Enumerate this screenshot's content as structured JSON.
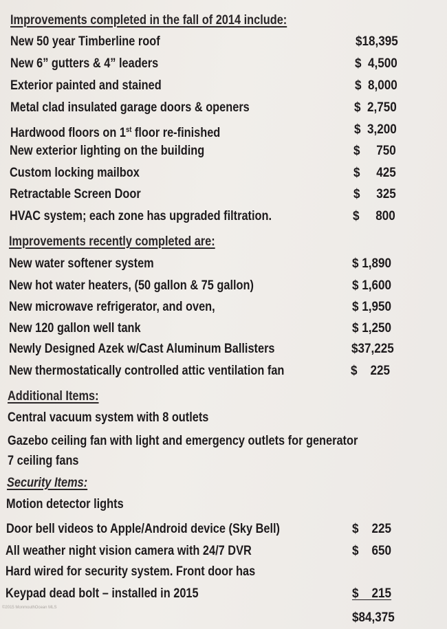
{
  "section1": {
    "heading": "Improvements completed in the fall of 2014 include:",
    "items": [
      {
        "label": "New 50 year Timberline roof",
        "price": "$18,395"
      },
      {
        "label": "New 6” gutters & 4” leaders",
        "price": "$  4,500"
      },
      {
        "label": "Exterior painted and stained",
        "price": "$  8,000"
      },
      {
        "label": "Metal clad insulated garage doors & openers",
        "price": "$  2,750"
      },
      {
        "label": "Hardwood floors on 1",
        "sup": "st",
        "label_rest": " floor re-finished",
        "price": "$  3,200"
      },
      {
        "label": "New exterior lighting on the building",
        "price": "$     750"
      },
      {
        "label": "Custom locking mailbox",
        "price": "$     425"
      },
      {
        "label": "Retractable Screen Door",
        "price": "$     325"
      },
      {
        "label": "HVAC system;  each zone has upgraded filtration.",
        "price": "$     800"
      }
    ]
  },
  "section2": {
    "heading": "Improvements recently completed are:",
    "items": [
      {
        "label": "New water softener system",
        "price": "$ 1,890"
      },
      {
        "label": "New hot water heaters, (50 gallon & 75 gallon)",
        "price": "$ 1,600"
      },
      {
        "label": "New microwave refrigerator, and oven,",
        "price": "$ 1,950"
      },
      {
        "label": "New 120 gallon well tank",
        "price": "$ 1,250"
      },
      {
        "label": "Newly Designed Azek w/Cast Aluminum Ballisters",
        "price": "$37,225"
      },
      {
        "label": "New thermostatically controlled attic ventilation fan",
        "price": "$    225"
      }
    ]
  },
  "section3": {
    "heading": "Additional Items:",
    "items": [
      {
        "label": "Central vacuum system with 8 outlets"
      },
      {
        "label": "Gazebo ceiling fan with light and emergency outlets for generator"
      },
      {
        "label": "7 ceiling fans"
      }
    ]
  },
  "section4": {
    "heading": "Security Items:",
    "items": [
      {
        "label": "Motion detector lights"
      },
      {
        "label": "Door bell videos to Apple/Android device (Sky Bell)",
        "price": "$    225"
      },
      {
        "label": "All  weather night vision camera with 24/7 DVR",
        "price": "$    650"
      },
      {
        "label": "Hard wired for security system. Front door has"
      },
      {
        "label": "Keypad dead bolt – installed in 2015",
        "price": "$    215"
      }
    ]
  },
  "total": "$84,375",
  "watermark": "©2015 MonmouthOcean MLS"
}
